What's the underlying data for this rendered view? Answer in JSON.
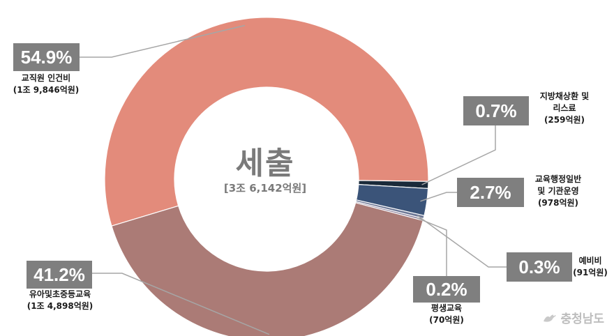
{
  "chart_data": {
    "type": "pie",
    "center": {
      "title": "세출",
      "total": "[3조 6,142억원]"
    },
    "slices": [
      {
        "pct": "54.9%",
        "value": 54.9,
        "label": [
          "교직원 인건비",
          "(1조 9,846억원)"
        ],
        "color": "#e38b7b"
      },
      {
        "pct": "0.7%",
        "value": 0.7,
        "label": [
          "지방채상환 및",
          "리스료",
          "(259억원)"
        ],
        "color": "#1a2a3a"
      },
      {
        "pct": "2.7%",
        "value": 2.7,
        "label": [
          "교육행정일반",
          "및 기관운영",
          "(978억원)"
        ],
        "color": "#3b5479"
      },
      {
        "pct": "0.3%",
        "value": 0.3,
        "label": [
          "예비비",
          "(91억원)"
        ],
        "color": "#6e7896"
      },
      {
        "pct": "0.2%",
        "value": 0.2,
        "label": [
          "평생교육",
          "(70억원)"
        ],
        "color": "#8a7f9a"
      },
      {
        "pct": "41.2%",
        "value": 41.2,
        "label": [
          "유아및초중등교육",
          "(1조 4,898억원)"
        ],
        "color": "#ab7b76"
      }
    ]
  },
  "watermark": {
    "text": "충청남도",
    "icon": "crane-logo-icon"
  }
}
